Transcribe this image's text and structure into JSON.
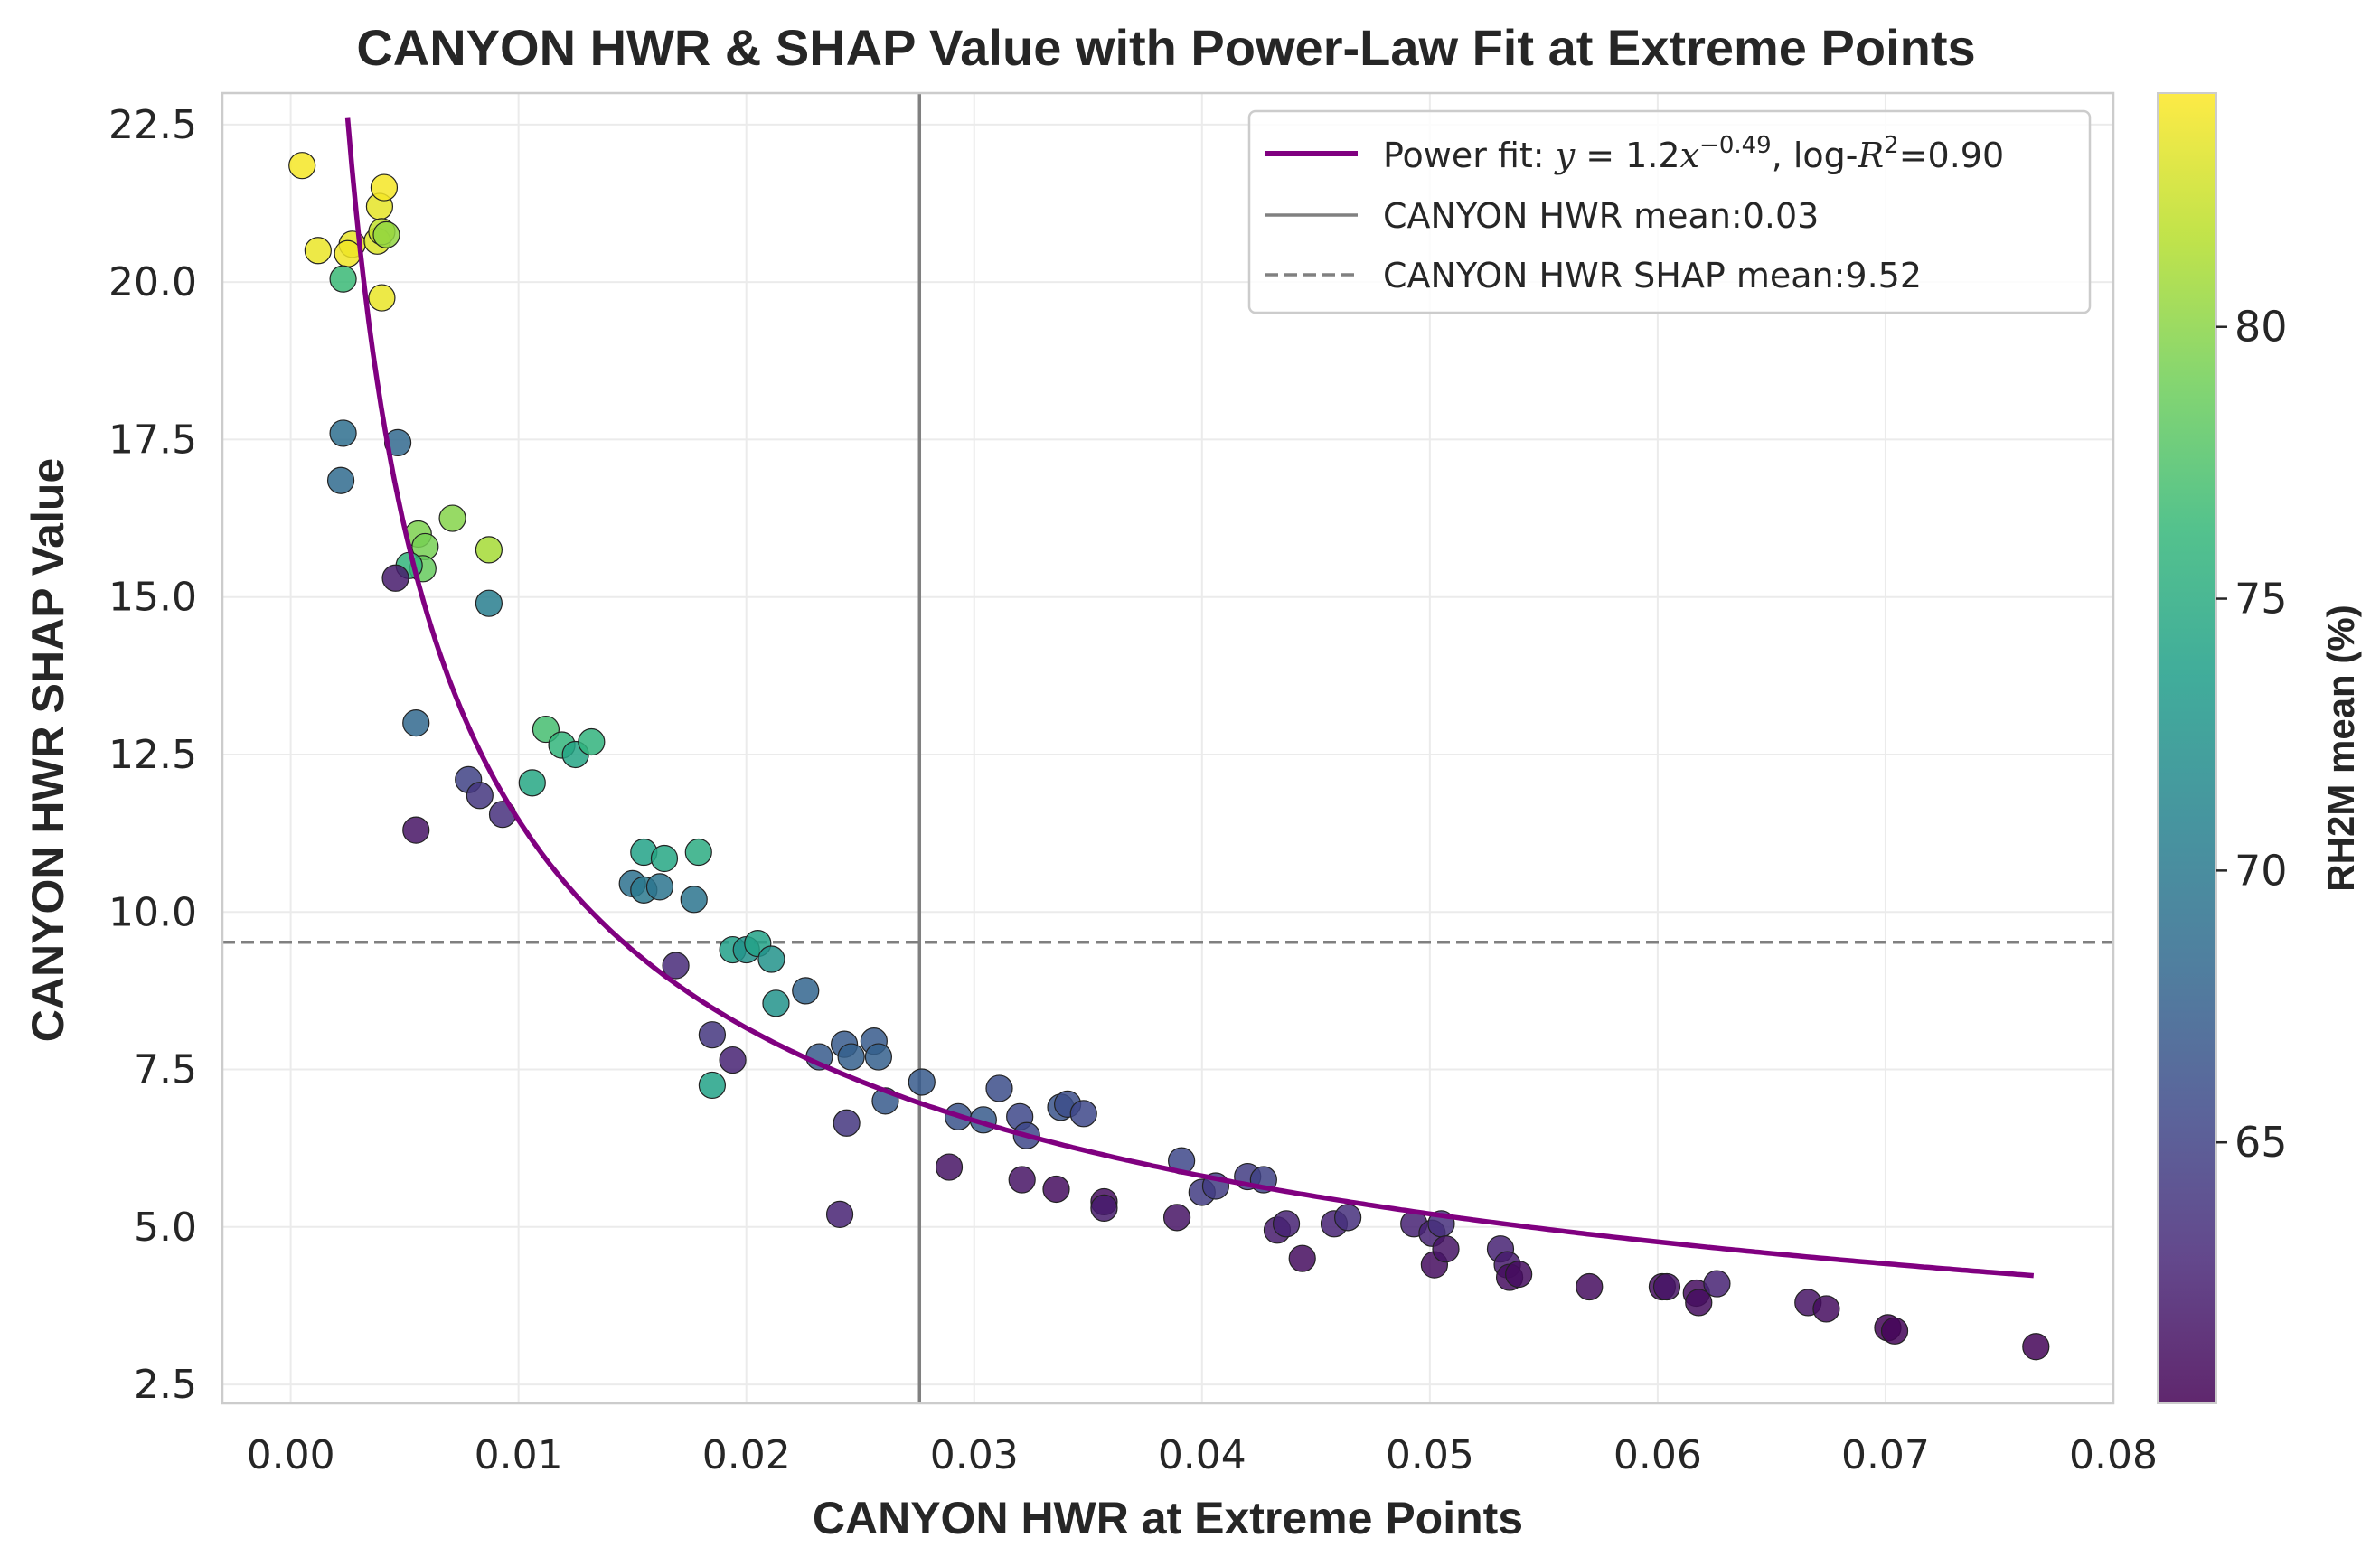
{
  "chart_data": {
    "type": "scatter",
    "title": "CANYON HWR & SHAP Value with Power-Law Fit at Extreme Points",
    "xlabel": "CANYON HWR at Extreme Points",
    "ylabel": "CANYON HWR SHAP Value",
    "xlim": [
      -0.003,
      0.08
    ],
    "ylim": [
      2.2,
      23.0
    ],
    "xticks": [
      0.0,
      0.01,
      0.02,
      0.03,
      0.04,
      0.05,
      0.06,
      0.07,
      0.08
    ],
    "xtick_labels": [
      "0.00",
      "0.01",
      "0.02",
      "0.03",
      "0.04",
      "0.05",
      "0.06",
      "0.07",
      "0.08"
    ],
    "yticks": [
      2.5,
      5.0,
      7.5,
      10.0,
      12.5,
      15.0,
      17.5,
      20.0,
      22.5
    ],
    "ytick_labels": [
      "2.5",
      "5.0",
      "7.5",
      "10.0",
      "12.5",
      "15.0",
      "17.5",
      "20.0",
      "22.5"
    ],
    "grid": true,
    "legend_placement": "top-right",
    "legend": {
      "fit_prefix": "Power fit: ",
      "fit_eq_y": "y",
      "fit_eq_mid": " = 1.2",
      "fit_eq_x": "x",
      "fit_eq_exp": "−0.49",
      "fit_log": ", log-",
      "fit_r": "R",
      "fit_r_exp": "2",
      "fit_r_val": "=0.90",
      "xmean_label": "CANYON HWR mean:0.03",
      "ymean_label": "CANYON HWR SHAP mean:9.52"
    },
    "fit": {
      "a": 1.2,
      "b": -0.49,
      "x_range": [
        0.0025,
        0.0765
      ],
      "color": "#800080"
    },
    "x_mean": 0.0276,
    "y_mean": 9.52,
    "mean_line_color": "#808080",
    "colorbar": {
      "label": "RH2M mean (%)",
      "min": 60.2,
      "max": 84.3,
      "ticks": [
        65,
        70,
        75,
        80
      ],
      "tick_labels": [
        "65",
        "70",
        "75",
        "80"
      ],
      "colormap": "viridis"
    },
    "points": [
      {
        "x": 0.0005,
        "y": 21.85,
        "c": 84.0
      },
      {
        "x": 0.0012,
        "y": 20.5,
        "c": 83.6
      },
      {
        "x": 0.0027,
        "y": 20.6,
        "c": 83.5
      },
      {
        "x": 0.0025,
        "y": 20.45,
        "c": 83.8
      },
      {
        "x": 0.0023,
        "y": 20.05,
        "c": 76.5
      },
      {
        "x": 0.0038,
        "y": 20.65,
        "c": 83.0
      },
      {
        "x": 0.0039,
        "y": 21.2,
        "c": 83.4
      },
      {
        "x": 0.004,
        "y": 20.8,
        "c": 82.0
      },
      {
        "x": 0.0041,
        "y": 21.5,
        "c": 84.0
      },
      {
        "x": 0.0042,
        "y": 20.75,
        "c": 80.3
      },
      {
        "x": 0.004,
        "y": 19.75,
        "c": 83.6
      },
      {
        "x": 0.0023,
        "y": 17.6,
        "c": 69.0
      },
      {
        "x": 0.0022,
        "y": 16.85,
        "c": 68.5
      },
      {
        "x": 0.0047,
        "y": 17.45,
        "c": 68.2
      },
      {
        "x": 0.0056,
        "y": 16.0,
        "c": 79.5
      },
      {
        "x": 0.0059,
        "y": 15.8,
        "c": 79.2
      },
      {
        "x": 0.0058,
        "y": 15.45,
        "c": 78.5
      },
      {
        "x": 0.0052,
        "y": 15.5,
        "c": 76.0
      },
      {
        "x": 0.0046,
        "y": 15.3,
        "c": 62.0
      },
      {
        "x": 0.0071,
        "y": 16.25,
        "c": 79.8
      },
      {
        "x": 0.0087,
        "y": 15.75,
        "c": 81.0
      },
      {
        "x": 0.0087,
        "y": 14.9,
        "c": 70.5
      },
      {
        "x": 0.0055,
        "y": 13.0,
        "c": 68.2
      },
      {
        "x": 0.0055,
        "y": 11.3,
        "c": 61.5
      },
      {
        "x": 0.0078,
        "y": 12.1,
        "c": 65.0
      },
      {
        "x": 0.0083,
        "y": 11.85,
        "c": 64.0
      },
      {
        "x": 0.0093,
        "y": 11.55,
        "c": 63.5
      },
      {
        "x": 0.0106,
        "y": 12.05,
        "c": 74.5
      },
      {
        "x": 0.0112,
        "y": 12.9,
        "c": 77.0
      },
      {
        "x": 0.0119,
        "y": 12.65,
        "c": 76.0
      },
      {
        "x": 0.0125,
        "y": 12.5,
        "c": 74.2
      },
      {
        "x": 0.0132,
        "y": 12.7,
        "c": 75.8
      },
      {
        "x": 0.015,
        "y": 10.45,
        "c": 69.2
      },
      {
        "x": 0.0155,
        "y": 10.95,
        "c": 74.0
      },
      {
        "x": 0.0155,
        "y": 10.35,
        "c": 70.0
      },
      {
        "x": 0.0162,
        "y": 10.4,
        "c": 69.5
      },
      {
        "x": 0.0164,
        "y": 10.85,
        "c": 74.5
      },
      {
        "x": 0.0177,
        "y": 10.2,
        "c": 69.5
      },
      {
        "x": 0.0179,
        "y": 10.95,
        "c": 75.0
      },
      {
        "x": 0.0169,
        "y": 9.15,
        "c": 63.0
      },
      {
        "x": 0.0194,
        "y": 9.4,
        "c": 73.8
      },
      {
        "x": 0.02,
        "y": 9.4,
        "c": 72.5
      },
      {
        "x": 0.0205,
        "y": 9.5,
        "c": 74.0
      },
      {
        "x": 0.0211,
        "y": 9.25,
        "c": 72.5
      },
      {
        "x": 0.0213,
        "y": 8.55,
        "c": 72.5
      },
      {
        "x": 0.0226,
        "y": 8.75,
        "c": 68.0
      },
      {
        "x": 0.0185,
        "y": 8.05,
        "c": 64.0
      },
      {
        "x": 0.0194,
        "y": 7.65,
        "c": 62.5
      },
      {
        "x": 0.0185,
        "y": 7.25,
        "c": 74.0
      },
      {
        "x": 0.0232,
        "y": 7.7,
        "c": 67.0
      },
      {
        "x": 0.0243,
        "y": 7.9,
        "c": 67.0
      },
      {
        "x": 0.0246,
        "y": 7.7,
        "c": 67.5
      },
      {
        "x": 0.0256,
        "y": 7.95,
        "c": 67.0
      },
      {
        "x": 0.0258,
        "y": 7.7,
        "c": 67.5
      },
      {
        "x": 0.0261,
        "y": 7.0,
        "c": 67.0
      },
      {
        "x": 0.0244,
        "y": 6.65,
        "c": 64.0
      },
      {
        "x": 0.0241,
        "y": 5.2,
        "c": 62.5
      },
      {
        "x": 0.0277,
        "y": 7.3,
        "c": 67.0
      },
      {
        "x": 0.0293,
        "y": 6.75,
        "c": 66.5
      },
      {
        "x": 0.0304,
        "y": 6.7,
        "c": 67.0
      },
      {
        "x": 0.0311,
        "y": 7.2,
        "c": 66.0
      },
      {
        "x": 0.032,
        "y": 6.75,
        "c": 65.5
      },
      {
        "x": 0.0323,
        "y": 6.45,
        "c": 65.5
      },
      {
        "x": 0.0338,
        "y": 6.9,
        "c": 66.5
      },
      {
        "x": 0.0341,
        "y": 6.95,
        "c": 66.0
      },
      {
        "x": 0.0348,
        "y": 6.8,
        "c": 65.5
      },
      {
        "x": 0.0289,
        "y": 5.95,
        "c": 61.5
      },
      {
        "x": 0.0321,
        "y": 5.75,
        "c": 61.5
      },
      {
        "x": 0.0336,
        "y": 5.6,
        "c": 61.0
      },
      {
        "x": 0.0357,
        "y": 5.4,
        "c": 61.0
      },
      {
        "x": 0.0357,
        "y": 5.3,
        "c": 62.0
      },
      {
        "x": 0.0389,
        "y": 5.15,
        "c": 61.5
      },
      {
        "x": 0.0391,
        "y": 6.05,
        "c": 65.5
      },
      {
        "x": 0.04,
        "y": 5.55,
        "c": 64.5
      },
      {
        "x": 0.0406,
        "y": 5.65,
        "c": 64.5
      },
      {
        "x": 0.042,
        "y": 5.8,
        "c": 64.5
      },
      {
        "x": 0.0427,
        "y": 5.75,
        "c": 65.0
      },
      {
        "x": 0.0433,
        "y": 4.95,
        "c": 62.0
      },
      {
        "x": 0.0437,
        "y": 5.05,
        "c": 62.5
      },
      {
        "x": 0.0444,
        "y": 4.5,
        "c": 61.0
      },
      {
        "x": 0.0458,
        "y": 5.05,
        "c": 62.5
      },
      {
        "x": 0.0464,
        "y": 5.15,
        "c": 63.5
      },
      {
        "x": 0.0493,
        "y": 5.05,
        "c": 62.5
      },
      {
        "x": 0.0501,
        "y": 4.9,
        "c": 62.5
      },
      {
        "x": 0.0505,
        "y": 5.05,
        "c": 63.5
      },
      {
        "x": 0.0502,
        "y": 4.4,
        "c": 61.0
      },
      {
        "x": 0.0507,
        "y": 4.65,
        "c": 61.5
      },
      {
        "x": 0.0531,
        "y": 4.65,
        "c": 62.5
      },
      {
        "x": 0.0534,
        "y": 4.4,
        "c": 62.0
      },
      {
        "x": 0.0535,
        "y": 4.2,
        "c": 61.0
      },
      {
        "x": 0.0539,
        "y": 4.25,
        "c": 61.0
      },
      {
        "x": 0.057,
        "y": 4.05,
        "c": 61.0
      },
      {
        "x": 0.0602,
        "y": 4.05,
        "c": 61.0
      },
      {
        "x": 0.0604,
        "y": 4.05,
        "c": 61.5
      },
      {
        "x": 0.0617,
        "y": 3.95,
        "c": 61.0
      },
      {
        "x": 0.0618,
        "y": 3.8,
        "c": 61.0
      },
      {
        "x": 0.0626,
        "y": 4.1,
        "c": 62.5
      },
      {
        "x": 0.0666,
        "y": 3.8,
        "c": 61.5
      },
      {
        "x": 0.0674,
        "y": 3.7,
        "c": 61.0
      },
      {
        "x": 0.0701,
        "y": 3.4,
        "c": 60.5
      },
      {
        "x": 0.0704,
        "y": 3.35,
        "c": 60.5
      },
      {
        "x": 0.0766,
        "y": 3.1,
        "c": 60.5
      }
    ]
  }
}
